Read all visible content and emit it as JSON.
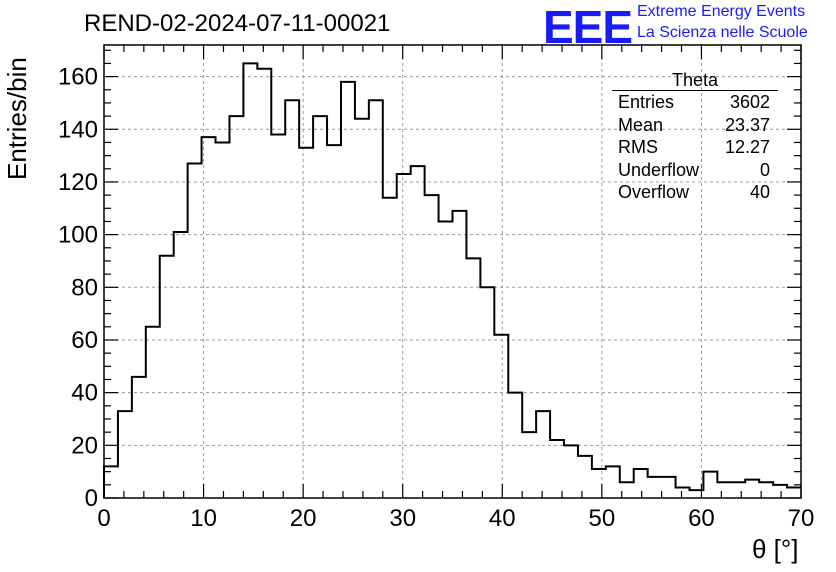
{
  "header": {
    "title": "REND-02-2024-07-11-00021"
  },
  "logo": {
    "mark": "EEE",
    "line1": "Extreme Energy Events",
    "line2": "La Scienza nelle Scuole",
    "color": "#1a1aff"
  },
  "stats_box": {
    "title": "Theta",
    "rows": [
      {
        "label": "Entries",
        "value": "3602"
      },
      {
        "label": "Mean",
        "value": "23.37"
      },
      {
        "label": "RMS",
        "value": "12.27"
      },
      {
        "label": "Underflow",
        "value": "0"
      },
      {
        "label": "Overflow",
        "value": "40"
      }
    ]
  },
  "chart_data": {
    "type": "bar",
    "style": "step-histogram",
    "xlabel": "θ [°]",
    "ylabel": "Entries/bin",
    "xlim": [
      0,
      70
    ],
    "ylim": [
      0,
      172
    ],
    "bin_width": 1.4,
    "x_ticks": [
      0,
      10,
      20,
      30,
      40,
      50,
      60,
      70
    ],
    "y_ticks": [
      0,
      20,
      40,
      60,
      80,
      100,
      120,
      140,
      160
    ],
    "grid": true,
    "line_color": "#000000",
    "values": [
      12,
      33,
      46,
      65,
      92,
      101,
      127,
      137,
      135,
      145,
      165,
      163,
      138,
      151,
      133,
      145,
      134,
      158,
      144,
      151,
      114,
      123,
      126,
      115,
      105,
      109,
      91,
      80,
      62,
      40,
      25,
      33,
      22,
      20,
      16,
      11,
      12,
      6,
      11,
      8,
      8,
      4,
      3,
      10,
      6,
      6,
      7,
      6,
      5,
      4
    ]
  }
}
